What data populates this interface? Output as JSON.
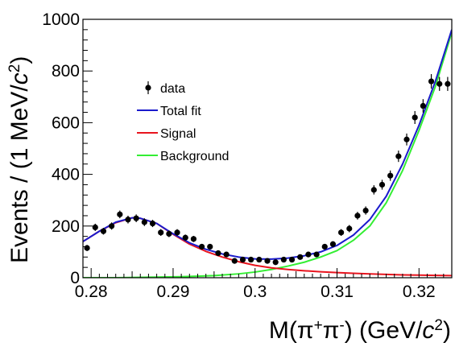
{
  "chart_data": {
    "type": "scatter",
    "title": "",
    "xlabel": "M(π⁺π⁻) (GeV/c²)",
    "ylabel": "Events / (1 MeV/c²)",
    "xlim": [
      0.279,
      0.324
    ],
    "ylim": [
      0,
      1000
    ],
    "x_ticks": [
      0.28,
      0.29,
      0.3,
      0.31,
      0.32
    ],
    "x_tick_labels": [
      "0.28",
      "0.29",
      "0.3",
      "0.31",
      "0.32"
    ],
    "y_ticks": [
      0,
      200,
      400,
      600,
      800,
      1000
    ],
    "y_tick_labels": [
      "0",
      "200",
      "400",
      "600",
      "800",
      "1000"
    ],
    "grid": false,
    "legend_position": "top-left",
    "legend": [
      {
        "key": "data",
        "label": "data",
        "style": "marker",
        "color": "#000000"
      },
      {
        "key": "total",
        "label": "Total fit",
        "style": "line",
        "color": "#1a1acc"
      },
      {
        "key": "signal",
        "label": "Signal",
        "style": "line",
        "color": "#e8141e"
      },
      {
        "key": "background",
        "label": "Background",
        "style": "line",
        "color": "#33ee33"
      }
    ],
    "series": [
      {
        "name": "data",
        "style": "marker",
        "color": "#000000",
        "x": [
          0.2795,
          0.2805,
          0.2815,
          0.2825,
          0.2835,
          0.2845,
          0.2855,
          0.2865,
          0.2875,
          0.2885,
          0.2895,
          0.2905,
          0.2915,
          0.2925,
          0.2935,
          0.2945,
          0.2955,
          0.2965,
          0.2975,
          0.2985,
          0.2995,
          0.3005,
          0.3015,
          0.3025,
          0.3035,
          0.3045,
          0.3055,
          0.3065,
          0.3075,
          0.3085,
          0.3095,
          0.3105,
          0.3115,
          0.3125,
          0.3135,
          0.3145,
          0.3155,
          0.3165,
          0.3175,
          0.3185,
          0.3195,
          0.3205,
          0.3215,
          0.3225,
          0.3235
        ],
        "y": [
          115,
          195,
          180,
          200,
          245,
          225,
          230,
          215,
          210,
          175,
          170,
          175,
          155,
          150,
          120,
          120,
          95,
          90,
          65,
          70,
          70,
          70,
          65,
          60,
          70,
          70,
          80,
          90,
          90,
          120,
          130,
          175,
          190,
          240,
          260,
          340,
          360,
          395,
          470,
          535,
          620,
          665,
          760,
          750,
          750
        ],
        "yerr": [
          12,
          14,
          13,
          14,
          15,
          15,
          15,
          15,
          14,
          13,
          13,
          13,
          12,
          12,
          11,
          11,
          10,
          10,
          8,
          8,
          8,
          8,
          8,
          8,
          8,
          8,
          9,
          9,
          9,
          11,
          11,
          13,
          14,
          15,
          16,
          18,
          19,
          20,
          22,
          23,
          25,
          26,
          28,
          27,
          27
        ]
      },
      {
        "name": "Total fit",
        "style": "line",
        "color": "#1a1acc",
        "x": [
          0.279,
          0.281,
          0.283,
          0.285,
          0.286,
          0.288,
          0.29,
          0.292,
          0.294,
          0.296,
          0.298,
          0.3,
          0.302,
          0.304,
          0.306,
          0.308,
          0.31,
          0.312,
          0.314,
          0.316,
          0.318,
          0.32,
          0.322,
          0.324
        ],
        "y": [
          140,
          180,
          215,
          232,
          230,
          210,
          170,
          135,
          110,
          92,
          80,
          73,
          72,
          76,
          85,
          100,
          125,
          165,
          225,
          315,
          440,
          590,
          760,
          960
        ]
      },
      {
        "name": "Signal",
        "style": "line",
        "color": "#e8141e",
        "x": [
          0.279,
          0.281,
          0.283,
          0.285,
          0.286,
          0.288,
          0.29,
          0.292,
          0.294,
          0.296,
          0.298,
          0.3,
          0.302,
          0.304,
          0.306,
          0.308,
          0.31,
          0.312,
          0.314,
          0.316,
          0.318,
          0.32,
          0.322,
          0.324
        ],
        "y": [
          140,
          180,
          213,
          232,
          230,
          210,
          168,
          130,
          102,
          80,
          62,
          48,
          38,
          32,
          27,
          23,
          20,
          17,
          15,
          13,
          11,
          10,
          9,
          8
        ]
      },
      {
        "name": "Background",
        "style": "line",
        "color": "#33ee33",
        "x": [
          0.279,
          0.283,
          0.287,
          0.291,
          0.295,
          0.298,
          0.3,
          0.302,
          0.304,
          0.306,
          0.308,
          0.31,
          0.312,
          0.314,
          0.316,
          0.318,
          0.32,
          0.322,
          0.324
        ],
        "y": [
          0,
          0,
          2,
          4,
          8,
          15,
          22,
          32,
          45,
          60,
          80,
          105,
          145,
          200,
          290,
          415,
          570,
          740,
          950
        ]
      }
    ]
  }
}
